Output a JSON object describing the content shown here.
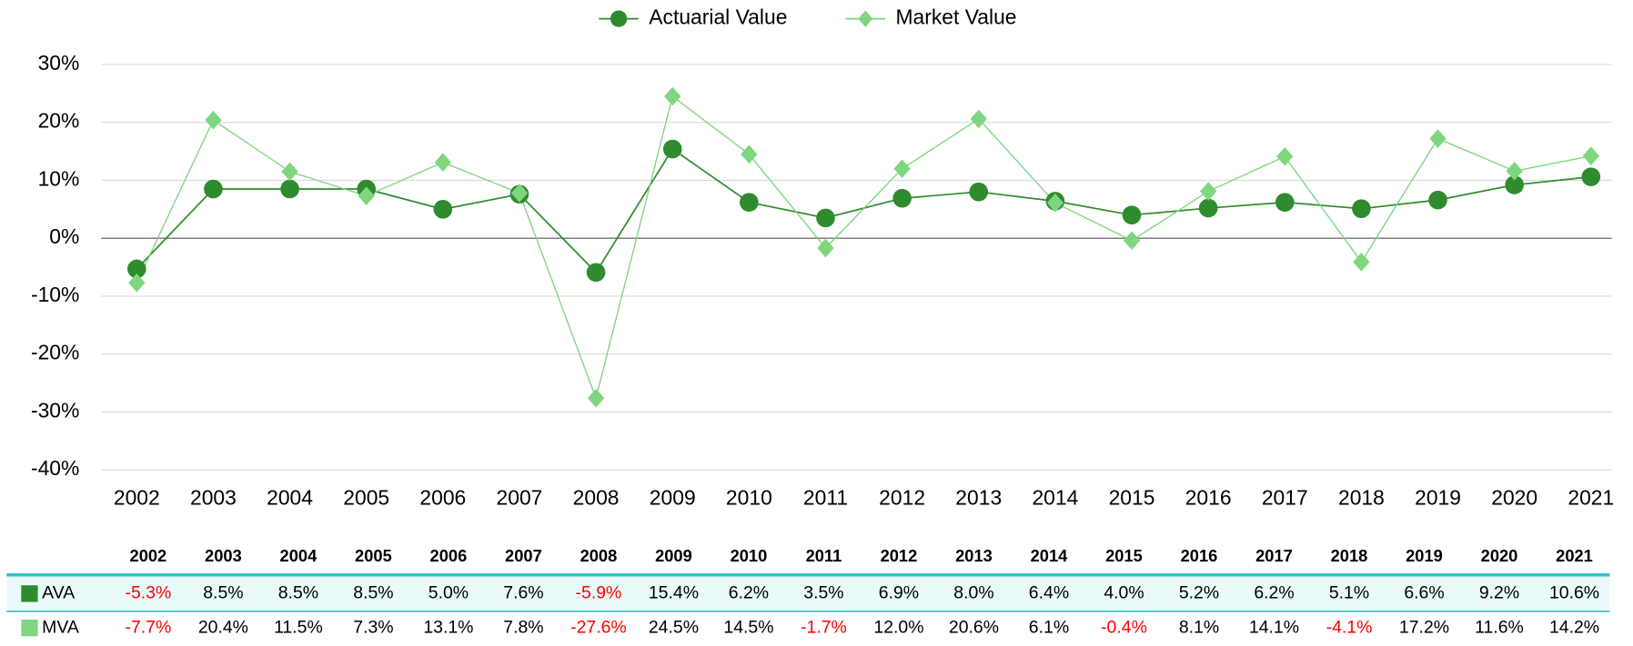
{
  "chart_data": {
    "type": "line",
    "categories": [
      "2002",
      "2003",
      "2004",
      "2005",
      "2006",
      "2007",
      "2008",
      "2009",
      "2010",
      "2011",
      "2012",
      "2013",
      "2014",
      "2015",
      "2016",
      "2017",
      "2018",
      "2019",
      "2020",
      "2021"
    ],
    "ylim": [
      -40,
      30
    ],
    "yticks": [
      {
        "value": -40,
        "label": "-40%"
      },
      {
        "value": -30,
        "label": "-30%"
      },
      {
        "value": -20,
        "label": "-20%"
      },
      {
        "value": -10,
        "label": "-10%"
      },
      {
        "value": 0,
        "label": "0%"
      },
      {
        "value": 10,
        "label": "10%"
      },
      {
        "value": 20,
        "label": "20%"
      },
      {
        "value": 30,
        "label": "30%"
      }
    ],
    "grid": true,
    "legend": "top",
    "series": [
      {
        "name": "Actuarial Value",
        "short_name": "AVA",
        "color": "#2e8b2e",
        "marker": "circle",
        "values": [
          -5.3,
          8.5,
          8.5,
          8.5,
          5.0,
          7.6,
          -5.9,
          15.4,
          6.2,
          3.5,
          6.9,
          8.0,
          6.4,
          4.0,
          5.2,
          6.2,
          5.1,
          6.6,
          9.2,
          10.6
        ],
        "value_labels": [
          "-5.3%",
          "8.5%",
          "8.5%",
          "8.5%",
          "5.0%",
          "7.6%",
          "-5.9%",
          "15.4%",
          "6.2%",
          "3.5%",
          "6.9%",
          "8.0%",
          "6.4%",
          "4.0%",
          "5.2%",
          "6.2%",
          "5.1%",
          "6.6%",
          "9.2%",
          "10.6%"
        ]
      },
      {
        "name": "Market Value",
        "short_name": "MVA",
        "color": "#7fd67f",
        "marker": "diamond",
        "values": [
          -7.7,
          20.4,
          11.5,
          7.3,
          13.1,
          7.8,
          -27.6,
          24.5,
          14.5,
          -1.7,
          12.0,
          20.6,
          6.1,
          -0.4,
          8.1,
          14.1,
          -4.1,
          17.2,
          11.6,
          14.2
        ],
        "value_labels": [
          "-7.7%",
          "20.4%",
          "11.5%",
          "7.3%",
          "13.1%",
          "7.8%",
          "-27.6%",
          "24.5%",
          "14.5%",
          "-1.7%",
          "12.0%",
          "20.6%",
          "6.1%",
          "-0.4%",
          "8.1%",
          "14.1%",
          "-4.1%",
          "17.2%",
          "11.6%",
          "14.2%"
        ]
      }
    ]
  }
}
